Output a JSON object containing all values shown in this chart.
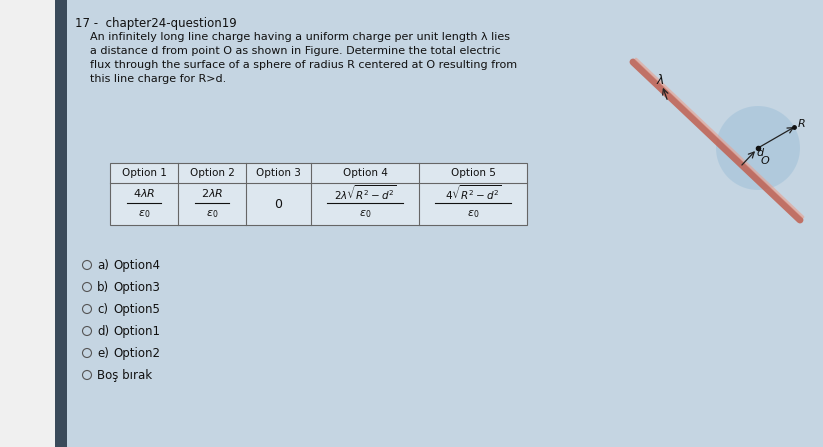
{
  "title": "17 -  chapter24-question19",
  "question_lines": [
    "An infinitely long line charge having a uniform charge per unit length λ lies",
    "a distance d from point O as shown in Figure. Determine the total electric",
    "flux through the surface of a sphere of radius R centered at O resulting from",
    "this line charge for R>d."
  ],
  "bg_color": "#c5d5e2",
  "table_headers": [
    "Option 1",
    "Option 2",
    "Option 3",
    "Option 4",
    "Option 5"
  ],
  "opt1_num": "4λR",
  "opt1_den": "ε₀",
  "opt2_num": "2λR",
  "opt2_den": "ε₀",
  "opt3": "0",
  "opt4_num": "2λ√R² − d²",
  "opt4_den": "ε₀",
  "opt5_num": "4√R² − d²",
  "opt5_den": "ε₀",
  "choices": [
    "a)",
    "b)",
    "c)",
    "d)",
    "e)"
  ],
  "choice_labels": [
    "Option4",
    "Option3",
    "Option5",
    "Option1",
    "Option2"
  ],
  "last_choice": "Boş bırak",
  "text_color": "#111111",
  "table_bg": "#dde7ef",
  "left_bar_color": "#3a4a5a",
  "sphere_color": "#adc8dc",
  "line_color": "#c06050"
}
